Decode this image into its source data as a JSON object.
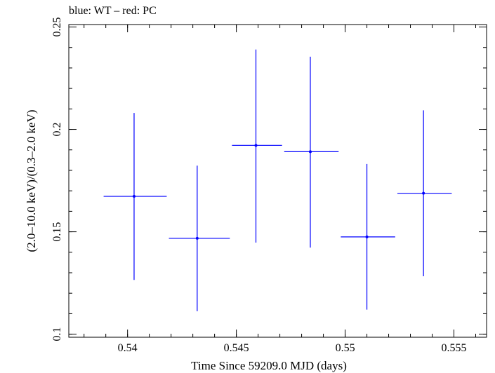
{
  "chart_data": {
    "type": "scatter",
    "title": "blue: WT – red: PC",
    "xlabel": "Time Since 59209.0 MJD (days)",
    "ylabel": "(2.0–10.0 keV)/(0.3–2.0 keV)",
    "xlim": [
      0.5373,
      0.5565
    ],
    "ylim": [
      0.0985,
      0.2512
    ],
    "x_ticks": [
      {
        "value": 0.54,
        "label": "0.54"
      },
      {
        "value": 0.545,
        "label": "0.545"
      },
      {
        "value": 0.55,
        "label": "0.55"
      },
      {
        "value": 0.555,
        "label": "0.555"
      }
    ],
    "y_ticks": [
      {
        "value": 0.1,
        "label": "0.1"
      },
      {
        "value": 0.15,
        "label": "0.15"
      },
      {
        "value": 0.2,
        "label": "0.2"
      },
      {
        "value": 0.25,
        "label": "0.25"
      }
    ],
    "grid": false,
    "series": [
      {
        "color": "#0000ff",
        "points": [
          {
            "x": 0.5403,
            "xerr_low": 0.5389,
            "xerr_high": 0.5418,
            "y": 0.1673,
            "yerr_low": 0.1265,
            "yerr_high": 0.208
          },
          {
            "x": 0.5432,
            "xerr_low": 0.5419,
            "xerr_high": 0.5447,
            "y": 0.1468,
            "yerr_low": 0.1112,
            "yerr_high": 0.1823
          },
          {
            "x": 0.5459,
            "xerr_low": 0.5448,
            "xerr_high": 0.5471,
            "y": 0.1922,
            "yerr_low": 0.1447,
            "yerr_high": 0.239
          },
          {
            "x": 0.5484,
            "xerr_low": 0.5472,
            "xerr_high": 0.5497,
            "y": 0.1891,
            "yerr_low": 0.1423,
            "yerr_high": 0.2355
          },
          {
            "x": 0.551,
            "xerr_low": 0.5498,
            "xerr_high": 0.5523,
            "y": 0.1475,
            "yerr_low": 0.112,
            "yerr_high": 0.1831
          },
          {
            "x": 0.5536,
            "xerr_low": 0.5524,
            "xerr_high": 0.5549,
            "y": 0.1688,
            "yerr_low": 0.1283,
            "yerr_high": 0.2093
          }
        ]
      }
    ]
  }
}
